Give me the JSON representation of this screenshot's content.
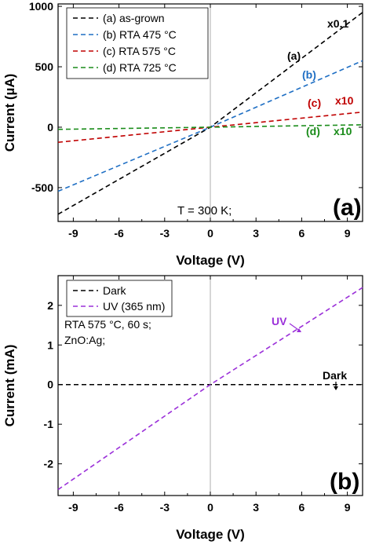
{
  "chart_data": [
    {
      "type": "line",
      "panel_label": "(a)",
      "xlabel": "Voltage (V)",
      "ylabel": "Current (µA)",
      "xlim": [
        -10,
        10
      ],
      "ylim": [
        -780,
        1020
      ],
      "xticks": [
        -9,
        -6,
        -3,
        0,
        3,
        6,
        9
      ],
      "yticks": [
        -500,
        0,
        500,
        1000
      ],
      "xtick_labels": [
        "-9",
        "-6",
        "-3",
        "0",
        "3",
        "6",
        "9"
      ],
      "ytick_labels": [
        "-500",
        "0",
        "500",
        "1000"
      ],
      "annotation": "T = 300 K;",
      "legend": "top-left",
      "series": [
        {
          "name": "(a) as-grown",
          "label": "(a)",
          "scale_label": "x0.1",
          "color": "#000000",
          "style": "dashed",
          "x": [
            -10,
            0,
            10
          ],
          "y": [
            -720,
            0,
            950
          ]
        },
        {
          "name": "(b) RTA 475 °C",
          "label": "(b)",
          "color": "#1f6fc4",
          "style": "dashed",
          "x": [
            -10,
            0,
            10
          ],
          "y": [
            -530,
            0,
            550
          ]
        },
        {
          "name": "(c) RTA 575 °C",
          "label": "(c)",
          "scale_label": "x10",
          "color": "#c00000",
          "style": "dashed",
          "x": [
            -10,
            0,
            10
          ],
          "y": [
            -125,
            0,
            125
          ]
        },
        {
          "name": "(d) RTA 725 °C",
          "label": "(d)",
          "scale_label": "x10",
          "color": "#1a8c1a",
          "style": "dashed",
          "x": [
            -10,
            0,
            10
          ],
          "y": [
            -18,
            0,
            20
          ]
        }
      ]
    },
    {
      "type": "line",
      "panel_label": "(b)",
      "xlabel": "Voltage (V)",
      "ylabel": "Current (mA)",
      "xlim": [
        -10,
        10
      ],
      "ylim": [
        -2.8,
        2.75
      ],
      "xticks": [
        -9,
        -6,
        -3,
        0,
        3,
        6,
        9
      ],
      "yticks": [
        -2,
        -1,
        0,
        1,
        2
      ],
      "xtick_labels": [
        "-9",
        "-6",
        "-3",
        "0",
        "3",
        "6",
        "9"
      ],
      "ytick_labels": [
        "-2",
        "-1",
        "0",
        "1",
        "2"
      ],
      "annotations": [
        "RTA 575 °C, 60 s;",
        "ZnO:Ag;"
      ],
      "legend": "top-left",
      "series": [
        {
          "name": "Dark",
          "label": "Dark",
          "color": "#000000",
          "style": "dashed",
          "x": [
            -10,
            0,
            10
          ],
          "y": [
            0,
            0,
            0
          ]
        },
        {
          "name": "UV (365 nm)",
          "label": "UV",
          "color": "#9b30d9",
          "style": "dashed",
          "x": [
            -10,
            0,
            10
          ],
          "y": [
            -2.65,
            0,
            2.45
          ]
        }
      ]
    }
  ]
}
